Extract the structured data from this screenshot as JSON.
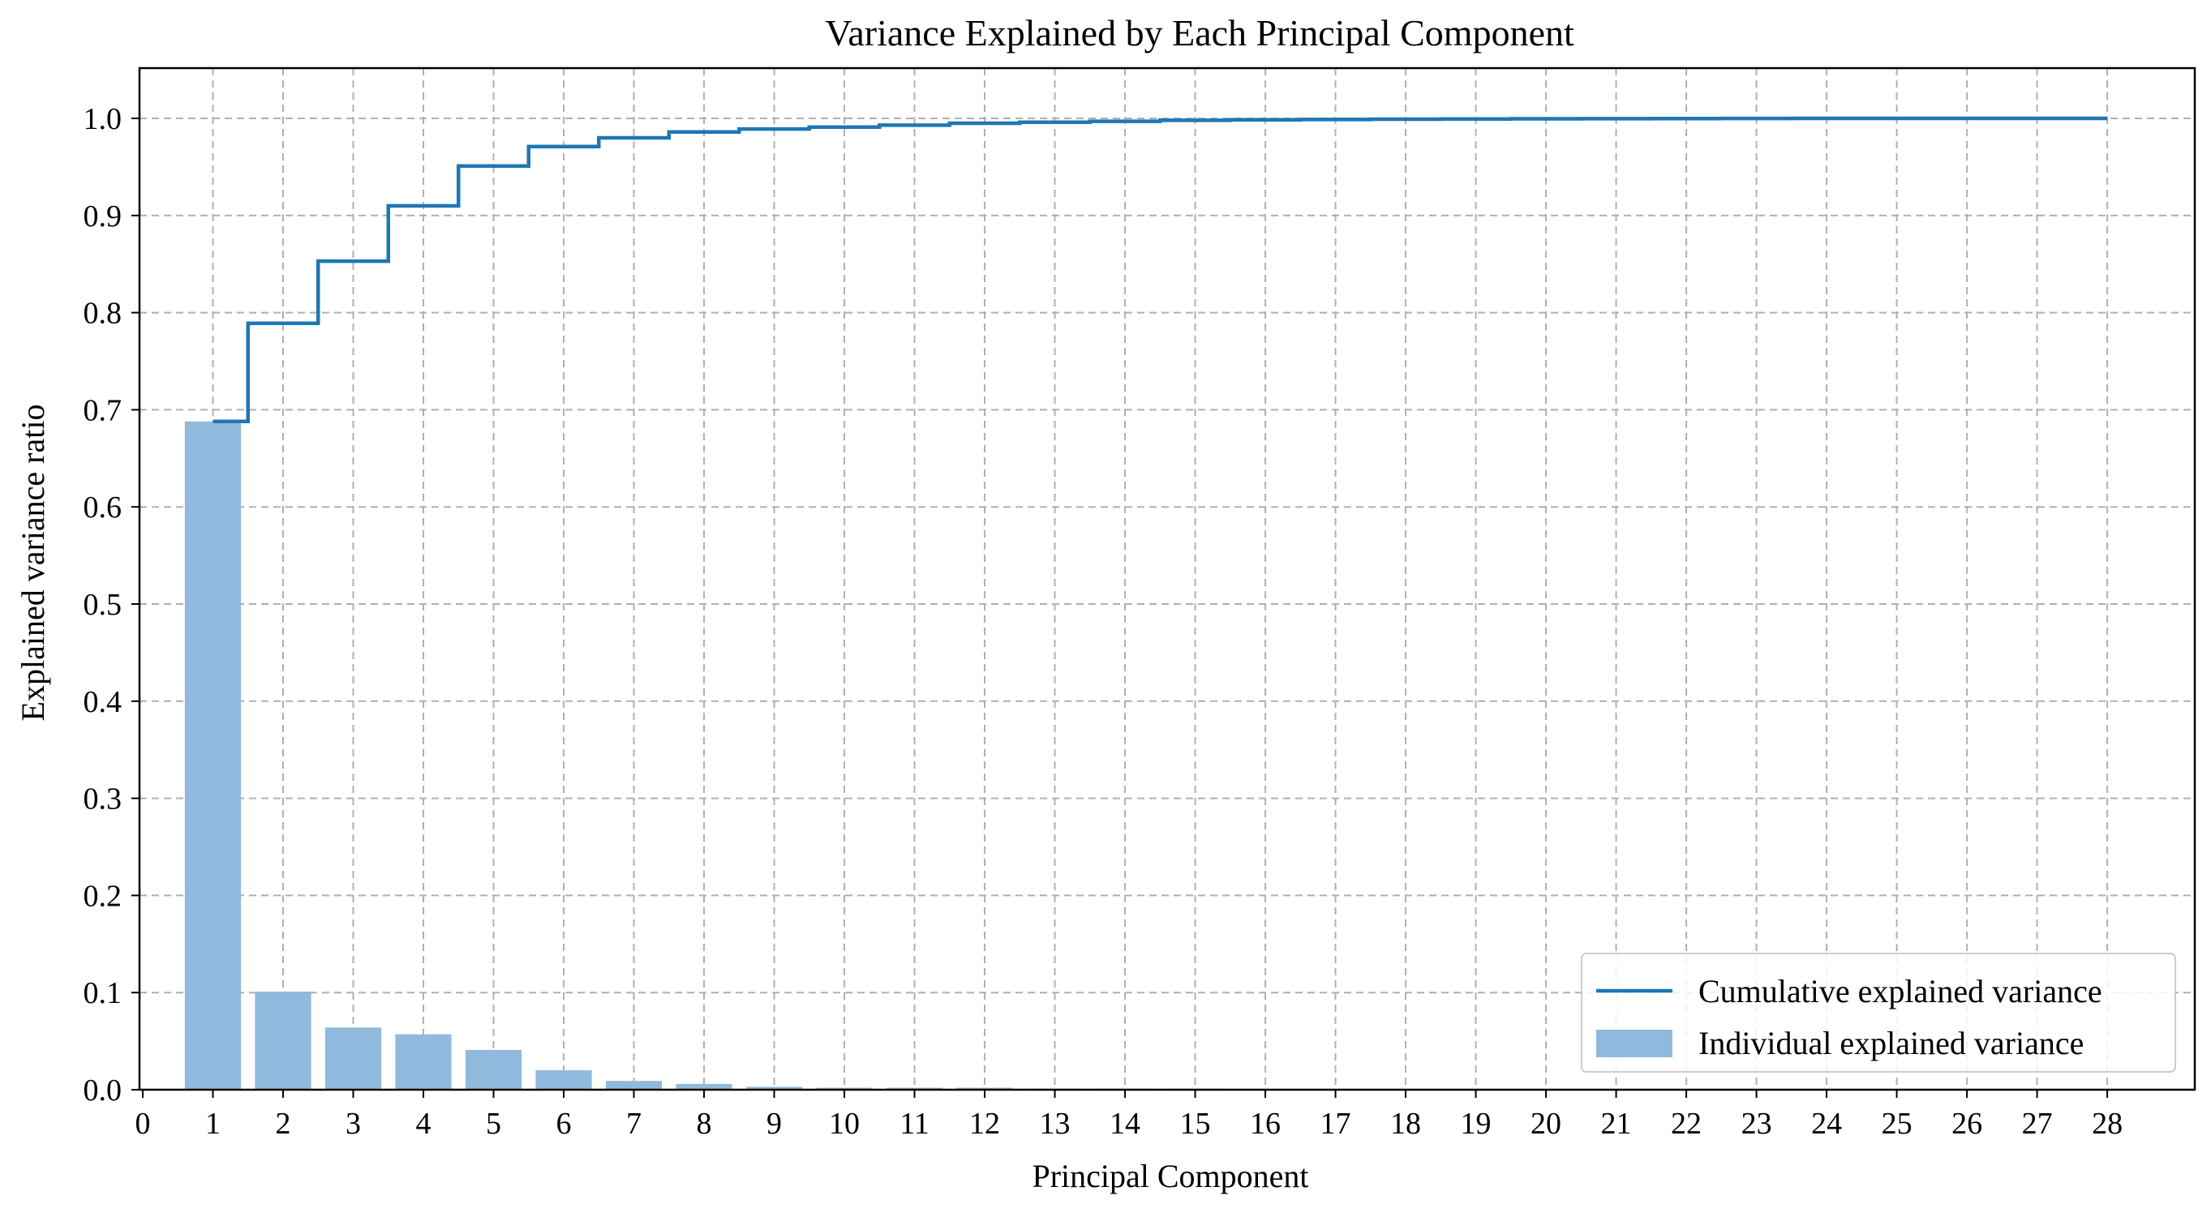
{
  "chart_data": {
    "type": "bar",
    "title": "Variance Explained by Each Principal Component",
    "xlabel": "Principal Component",
    "ylabel": "Explained variance ratio",
    "xlim": [
      0,
      29
    ],
    "ylim": [
      0,
      1.0
    ],
    "grid": true,
    "legend_position": "bottom-right",
    "x_ticks": [
      "0",
      "1",
      "2",
      "3",
      "4",
      "5",
      "6",
      "7",
      "8",
      "9",
      "10",
      "11",
      "12",
      "13",
      "14",
      "15",
      "16",
      "17",
      "18",
      "19",
      "20",
      "21",
      "22",
      "23",
      "24",
      "25",
      "26",
      "27",
      "28"
    ],
    "y_ticks": [
      "0.0",
      "0.1",
      "0.2",
      "0.3",
      "0.4",
      "0.5",
      "0.6",
      "0.7",
      "0.8",
      "0.9",
      "1.0"
    ],
    "categories": [
      1,
      2,
      3,
      4,
      5,
      6,
      7,
      8,
      9,
      10,
      11,
      12,
      13,
      14,
      15,
      16,
      17,
      18,
      19,
      20,
      21,
      22,
      23,
      24,
      25,
      26,
      27,
      28
    ],
    "series": [
      {
        "name": "Individual explained variance",
        "kind": "bar",
        "color": "#8fbadd",
        "values": [
          0.688,
          0.101,
          0.064,
          0.057,
          0.041,
          0.02,
          0.009,
          0.006,
          0.003,
          0.002,
          0.002,
          0.002,
          0.001,
          0.001,
          0.001,
          0.0005,
          0.0004,
          0.0003,
          0.0002,
          0.0002,
          0.0001,
          0.0001,
          0.0001,
          0.0,
          0.0,
          0.0,
          0.0,
          0.0
        ]
      },
      {
        "name": "Cumulative explained variance",
        "kind": "step",
        "color": "#1f77b4",
        "values": [
          0.688,
          0.789,
          0.853,
          0.91,
          0.951,
          0.971,
          0.98,
          0.986,
          0.989,
          0.991,
          0.993,
          0.995,
          0.996,
          0.997,
          0.998,
          0.9985,
          0.9989,
          0.9992,
          0.9994,
          0.9996,
          0.9997,
          0.9998,
          0.9999,
          1.0,
          1.0,
          1.0,
          1.0,
          1.0
        ]
      }
    ],
    "legend": [
      {
        "label": "Cumulative explained variance",
        "kind": "line",
        "color": "#1f77b4"
      },
      {
        "label": "Individual explained variance",
        "kind": "bar",
        "color": "#8fbadd"
      }
    ]
  }
}
